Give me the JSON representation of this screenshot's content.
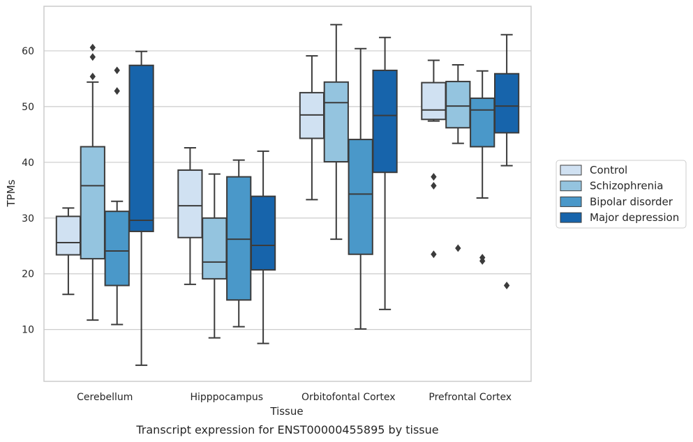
{
  "caption": "Transcript expression for ENST00000455895 by tissue",
  "chart_data": {
    "type": "box",
    "xlabel": "Tissue",
    "ylabel": "TPMs",
    "ylim": [
      0.7,
      68
    ],
    "yticks": [
      10,
      20,
      30,
      40,
      50,
      60
    ],
    "grid": "horizontal",
    "legend_position": "right",
    "categories": [
      "Cerebellum",
      "Hipppocampus",
      "Orbitofontal Cortex",
      "Prefrontal Cortex"
    ],
    "series": [
      {
        "name": "Control",
        "color": "#d0e1f2",
        "boxes": [
          {
            "whisker_low": 16.3,
            "q1": 23.4,
            "median": 25.6,
            "q3": 30.3,
            "whisker_high": 31.8,
            "outliers": []
          },
          {
            "whisker_low": 18.1,
            "q1": 26.5,
            "median": 32.2,
            "q3": 38.6,
            "whisker_high": 42.6,
            "outliers": []
          },
          {
            "whisker_low": 33.3,
            "q1": 44.3,
            "median": 48.5,
            "q3": 52.5,
            "whisker_high": 59.1,
            "outliers": []
          },
          {
            "whisker_low": 47.4,
            "q1": 47.7,
            "median": 49.4,
            "q3": 54.3,
            "whisker_high": 58.3,
            "outliers": [
              37.4,
              35.8,
              23.5
            ]
          }
        ]
      },
      {
        "name": "Schizophrenia",
        "color": "#94c4df",
        "boxes": [
          {
            "whisker_low": 11.7,
            "q1": 22.7,
            "median": 35.8,
            "q3": 42.8,
            "whisker_high": 54.4,
            "outliers": [
              60.6,
              58.9,
              55.4
            ]
          },
          {
            "whisker_low": 8.5,
            "q1": 19.1,
            "median": 22.1,
            "q3": 30.0,
            "whisker_high": 37.9,
            "outliers": []
          },
          {
            "whisker_low": 26.2,
            "q1": 40.1,
            "median": 50.7,
            "q3": 54.4,
            "whisker_high": 64.7,
            "outliers": []
          },
          {
            "whisker_low": 43.4,
            "q1": 46.2,
            "median": 50.1,
            "q3": 54.5,
            "whisker_high": 57.5,
            "outliers": [
              24.6
            ]
          }
        ]
      },
      {
        "name": "Bipolar disorder",
        "color": "#4a98c9",
        "boxes": [
          {
            "whisker_low": 10.9,
            "q1": 17.9,
            "median": 24.1,
            "q3": 31.2,
            "whisker_high": 33.0,
            "outliers": [
              56.5,
              52.8
            ]
          },
          {
            "whisker_low": 10.5,
            "q1": 15.3,
            "median": 26.2,
            "q3": 37.4,
            "whisker_high": 40.4,
            "outliers": []
          },
          {
            "whisker_low": 10.1,
            "q1": 23.5,
            "median": 34.3,
            "q3": 44.1,
            "whisker_high": 60.4,
            "outliers": []
          },
          {
            "whisker_low": 33.6,
            "q1": 42.8,
            "median": 49.4,
            "q3": 51.5,
            "whisker_high": 56.4,
            "outliers": [
              22.9,
              22.3
            ]
          }
        ]
      },
      {
        "name": "Major depression",
        "color": "#1764ab",
        "boxes": [
          {
            "whisker_low": 3.6,
            "q1": 27.6,
            "median": 29.6,
            "q3": 57.4,
            "whisker_high": 59.9,
            "outliers": []
          },
          {
            "whisker_low": 7.5,
            "q1": 20.7,
            "median": 25.1,
            "q3": 33.9,
            "whisker_high": 42.0,
            "outliers": []
          },
          {
            "whisker_low": 13.6,
            "q1": 38.2,
            "median": 48.4,
            "q3": 56.5,
            "whisker_high": 62.4,
            "outliers": []
          },
          {
            "whisker_low": 39.4,
            "q1": 45.3,
            "median": 50.1,
            "q3": 55.9,
            "whisker_high": 62.9,
            "outliers": [
              17.9
            ]
          }
        ]
      }
    ]
  }
}
